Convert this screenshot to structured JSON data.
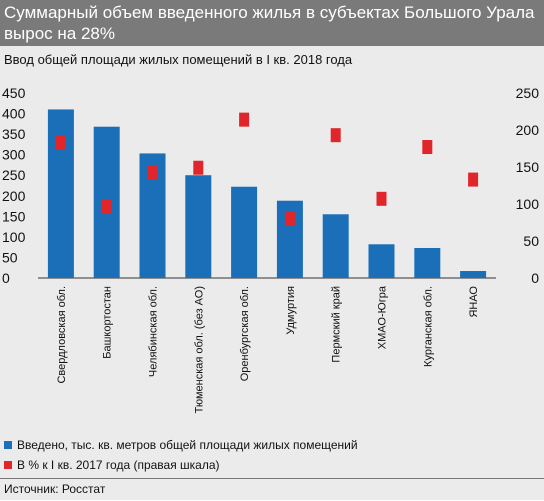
{
  "header": {
    "title": "Суммарный объем введенного жилья в субъектах Большого Урала вырос на 28%",
    "subtitle": "Ввод общей площади жилых помещений в I кв. 2018 года"
  },
  "chart_data": {
    "type": "bar",
    "categories": [
      "Свердловская обл.",
      "Башкортостан",
      "Челябинская обл.",
      "Тюменская обл. (без АО)",
      "Оренбургская обл.",
      "Удмуртия",
      "Пермский край",
      "ХМАО-Югра",
      "Курганская обл.",
      "ЯНАО"
    ],
    "series": [
      {
        "name": "Введено, тыс. кв. метров общей площади жилых помещений",
        "axis": "left",
        "style": "bar",
        "color": "#1a6fb8",
        "values": [
          410,
          368,
          303,
          250,
          222,
          188,
          155,
          82,
          73,
          17
        ]
      },
      {
        "name": "В % к I кв. 2017 года (правая шкала)",
        "axis": "right",
        "style": "marker",
        "color": "#e0262b",
        "values": [
          183,
          97,
          142,
          149,
          214,
          81,
          193,
          107,
          177,
          133
        ]
      }
    ],
    "yleft": {
      "lim": [
        0,
        450
      ],
      "ticks": [
        0,
        50,
        100,
        150,
        200,
        250,
        300,
        350,
        400,
        450
      ]
    },
    "yright": {
      "lim": [
        0,
        250
      ],
      "ticks": [
        0,
        50,
        100,
        150,
        200,
        250
      ]
    },
    "grid": false,
    "legend": "bottom"
  },
  "legend": {
    "items": [
      {
        "label": "Введено, тыс. кв. метров общей площади жилых помещений",
        "color": "#1a6fb8"
      },
      {
        "label": "В % к I кв. 2017 года (правая шкала)",
        "color": "#e0262b"
      }
    ]
  },
  "footer": {
    "source": "Источник: Росстат"
  }
}
